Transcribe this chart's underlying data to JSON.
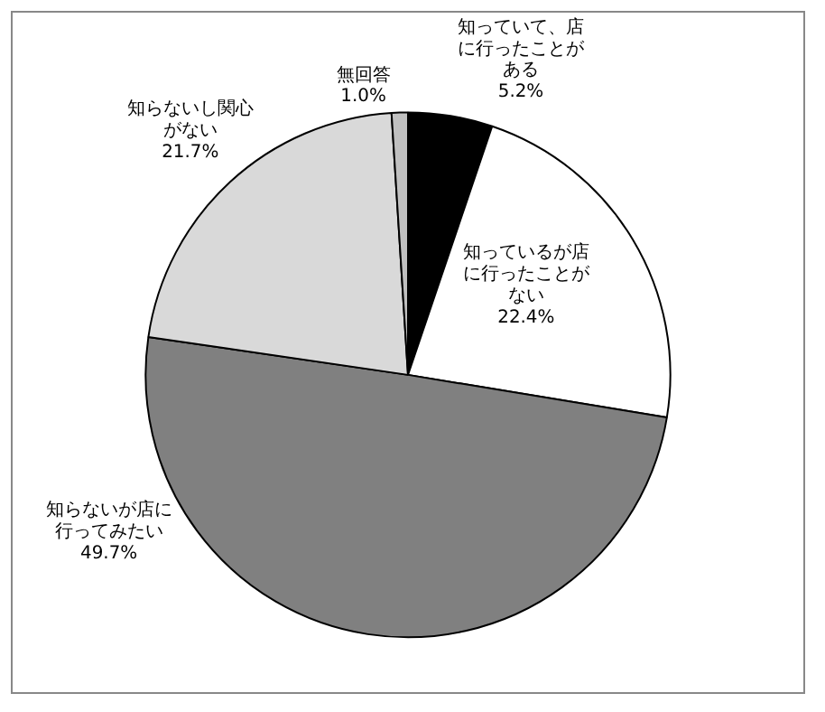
{
  "chart_data": {
    "type": "pie",
    "categories": [
      "知っていて、店に行ったことがある",
      "知っているが店に行ったことがない",
      "知らないが店に行ってみたい",
      "知らないし関心がない",
      "無回答"
    ],
    "values": [
      5.2,
      22.4,
      49.7,
      21.7,
      1.0
    ],
    "value_labels": [
      "5.2%",
      "22.4%",
      "49.7%",
      "21.7%",
      "1.0%"
    ],
    "colors": [
      "#000000",
      "#ffffff",
      "#808080",
      "#d9d9d9",
      "#c0c0c0"
    ],
    "legend": false
  }
}
